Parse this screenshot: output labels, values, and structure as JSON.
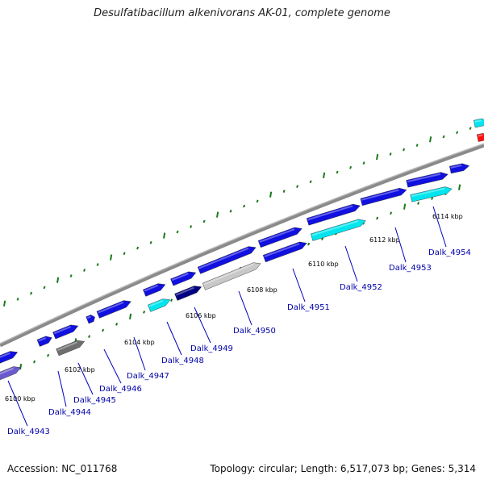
{
  "title": "Desulfatibacillum alkenivorans AK-01, complete genome",
  "footer": {
    "accession": "Accession: NC_011768",
    "summary": "Topology: circular; Length: 6,517,073 bp; Genes: 5,314"
  },
  "colors": {
    "backbone": "#8a8a8a",
    "cds": "#1010e0",
    "cds_dark": "#000080",
    "cds_cyan": "#00e5ee",
    "cds_gray": "#6e6e6e",
    "cds_lightgray": "#c8c8c8",
    "cds_slate": "#6a5acd",
    "cds_red": "#ff1010",
    "tick": "#1a7a1a",
    "label": "#0000a8"
  },
  "kbp_labels": [
    "6100 kbp",
    "6102 kbp",
    "6104 kbp",
    "6106 kbp",
    "6108 kbp",
    "6110 kbp",
    "6112 kbp",
    "6114 kbp"
  ],
  "genes": [
    "Dalk_4943",
    "Dalk_4944",
    "Dalk_4945",
    "Dalk_4946",
    "Dalk_4947",
    "Dalk_4948",
    "Dalk_4949",
    "Dalk_4950",
    "Dalk_4951",
    "Dalk_4952",
    "Dalk_4953",
    "Dalk_4954"
  ]
}
